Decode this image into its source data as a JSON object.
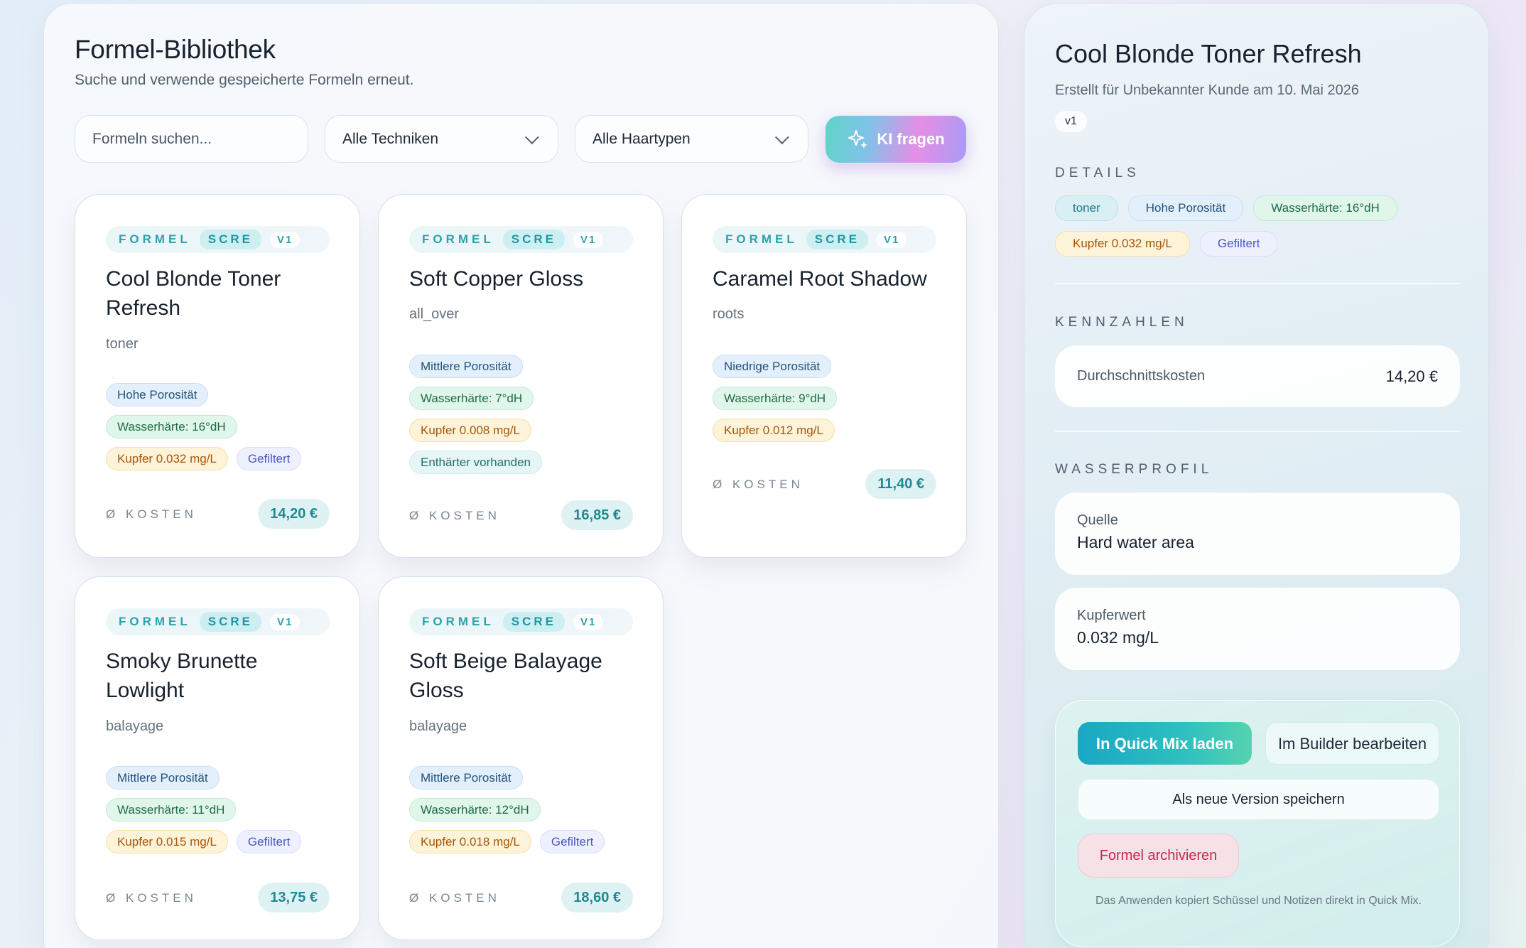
{
  "library": {
    "title": "Formel-Bibliothek",
    "subtitle": "Suche und verwende gespeicherte Formeln erneut.",
    "search_placeholder": "Formeln suchen...",
    "technique_filter": "Alle Techniken",
    "hairtype_filter": "Alle Haartypen",
    "ai_button": "KI fragen"
  },
  "card_labels": {
    "formel": "FORMEL",
    "scre": "SCRE",
    "cost_label": "Ø KOSTEN"
  },
  "cards": [
    {
      "version": "V1",
      "title": "Cool Blonde Toner Refresh",
      "technique": "toner",
      "chips": [
        "Hohe Porosität",
        "Wasserhärte: 16°dH",
        "Kupfer 0.032 mg/L",
        "Gefiltert"
      ],
      "cost": "14,20 €"
    },
    {
      "version": "V1",
      "title": "Soft Copper Gloss",
      "technique": "all_over",
      "chips": [
        "Mittlere Porosität",
        "Wasserhärte: 7°dH",
        "Kupfer 0.008 mg/L",
        "Enthärter vorhanden"
      ],
      "cost": "16,85 €"
    },
    {
      "version": "V1",
      "title": "Caramel Root Shadow",
      "technique": "roots",
      "chips": [
        "Niedrige Porosität",
        "Wasserhärte: 9°dH",
        "Kupfer 0.012 mg/L"
      ],
      "cost": "11,40 €"
    },
    {
      "version": "V1",
      "title": "Smoky Brunette Lowlight",
      "technique": "balayage",
      "chips": [
        "Mittlere Porosität",
        "Wasserhärte: 11°dH",
        "Kupfer 0.015 mg/L",
        "Gefiltert"
      ],
      "cost": "13,75 €"
    },
    {
      "version": "V1",
      "title": "Soft Beige Balayage Gloss",
      "technique": "balayage",
      "chips": [
        "Mittlere Porosität",
        "Wasserhärte: 12°dH",
        "Kupfer 0.018 mg/L",
        "Gefiltert"
      ],
      "cost": "18,60 €"
    }
  ],
  "detail": {
    "title": "Cool Blonde Toner Refresh",
    "subtitle": "Erstellt für Unbekannter Kunde am 10. Mai 2026",
    "version": "v1",
    "details_heading": "DETAILS",
    "chips": [
      "toner",
      "Hohe Porosität",
      "Wasserhärte: 16°dH",
      "Kupfer 0.032 mg/L",
      "Gefiltert"
    ],
    "metrics_heading": "KENNZAHLEN",
    "avg_cost_label": "Durchschnittskosten",
    "avg_cost_value": "14,20 €",
    "water_heading": "WASSERPROFIL",
    "source_label": "Quelle",
    "source_value": "Hard water area",
    "copper_label": "Kupferwert",
    "copper_value": "0.032 mg/L",
    "btn_quick_mix": "In Quick Mix laden",
    "btn_builder": "Im Builder bearbeiten",
    "btn_new_version": "Als neue Version speichern",
    "btn_archive": "Formel archivieren",
    "hint": "Das Anwenden kopiert Schüssel und Notizen direkt in Quick Mix."
  },
  "colors": {
    "accent_teal": "#1d8a96",
    "archive_red": "#c3284f",
    "chip_blue": "#22527a",
    "chip_green": "#1e6b44",
    "chip_amber": "#a55609",
    "chip_violet": "#4b57c4"
  },
  "icons": {
    "ai_button_icon": "sparkle-icon",
    "select_icon": "chevron-down-icon"
  }
}
